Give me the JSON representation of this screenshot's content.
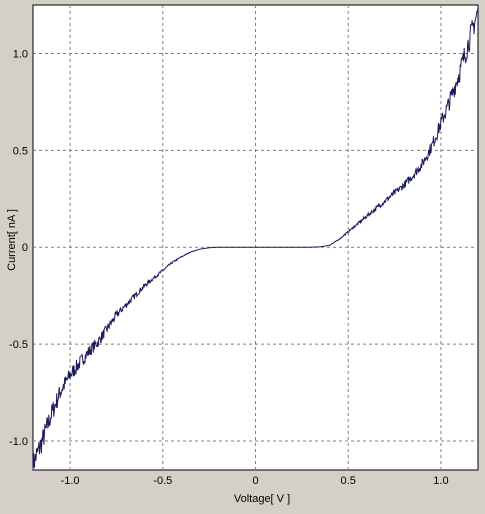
{
  "chart_data": {
    "type": "line",
    "title": "",
    "xlabel": "Voltage[ V ]",
    "ylabel": "Current[ nA ]",
    "xlim": [
      -1.2,
      1.2
    ],
    "ylim": [
      -1.15,
      1.25
    ],
    "x_ticks": [
      -1.0,
      -0.5,
      0,
      0.5,
      1.0
    ],
    "x_tick_labels": [
      "-1.0",
      "-0.5",
      "0",
      "0.5",
      "1.0"
    ],
    "y_ticks": [
      -1.0,
      -0.5,
      0,
      0.5,
      1.0
    ],
    "y_tick_labels": [
      "-1.0",
      "-0.5",
      "0",
      "0.5",
      "1.0"
    ],
    "grid": true,
    "legend": "none",
    "colors": {
      "background": "#d4d0c8",
      "plot_area": "#ffffff",
      "line": "#1a1a5c",
      "grid": "#808080"
    },
    "series": [
      {
        "x": [
          -1.2,
          -1.15,
          -1.1,
          -1.05,
          -1.0,
          -0.95,
          -0.9,
          -0.85,
          -0.8,
          -0.75,
          -0.7,
          -0.65,
          -0.6,
          -0.55,
          -0.5,
          -0.45,
          -0.4,
          -0.35,
          -0.3,
          -0.25,
          -0.2,
          -0.15,
          -0.1,
          -0.05,
          0.0,
          0.05,
          0.1,
          0.15,
          0.2,
          0.25,
          0.3,
          0.35,
          0.4,
          0.45,
          0.5,
          0.55,
          0.6,
          0.65,
          0.7,
          0.75,
          0.8,
          0.85,
          0.9,
          0.95,
          1.0,
          1.05,
          1.1,
          1.15,
          1.2
        ],
        "y": [
          -1.12,
          -1.0,
          -0.86,
          -0.74,
          -0.66,
          -0.6,
          -0.54,
          -0.49,
          -0.42,
          -0.35,
          -0.3,
          -0.25,
          -0.2,
          -0.16,
          -0.12,
          -0.08,
          -0.05,
          -0.025,
          -0.01,
          -0.003,
          0.0,
          0.0,
          0.0,
          0.0,
          0.0,
          0.0,
          0.0,
          0.0,
          0.0,
          0.0,
          0.0,
          0.002,
          0.01,
          0.04,
          0.08,
          0.12,
          0.16,
          0.2,
          0.24,
          0.28,
          0.32,
          0.37,
          0.43,
          0.52,
          0.64,
          0.76,
          0.9,
          1.06,
          1.22
        ]
      }
    ]
  }
}
